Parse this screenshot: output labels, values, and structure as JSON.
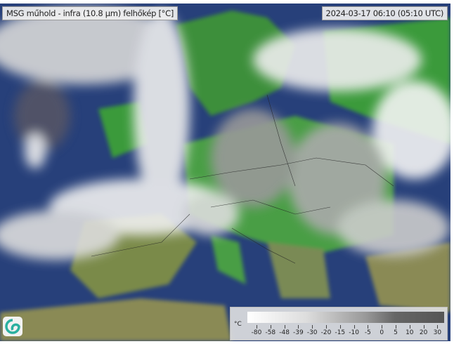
{
  "title": "MSG műhold - infra (10.8 µm) felhőkép [°C]",
  "timestamp": "2024-03-17 06:10 (05:10 UTC)",
  "legend": {
    "unit": "°C",
    "ticks": [
      "-80",
      "-58",
      "-48",
      "-39",
      "-30",
      "-20",
      "-15",
      "-10",
      "-5",
      "0",
      "5",
      "10",
      "20",
      "30"
    ]
  },
  "colors": {
    "sea": "#27407a",
    "land": "#3a9a3a",
    "cloud": "#e8e8e8"
  },
  "logo": "swirl-logo-icon"
}
